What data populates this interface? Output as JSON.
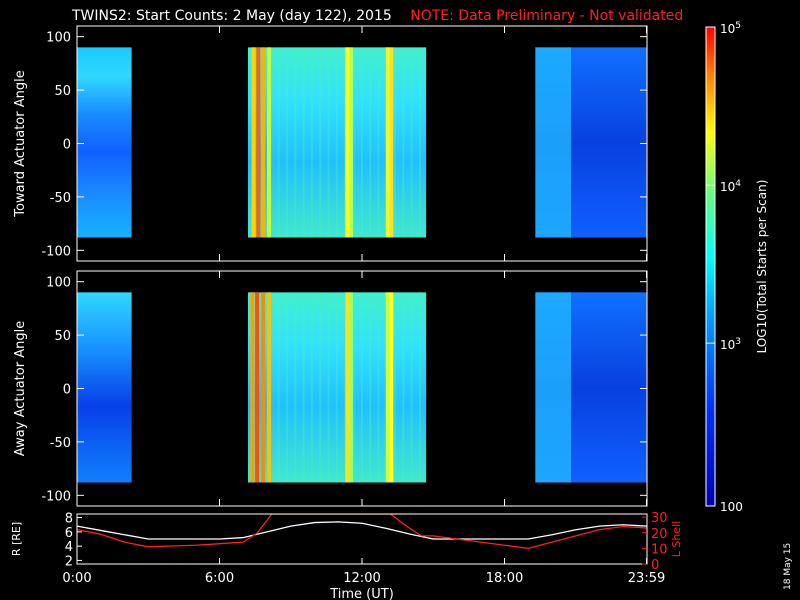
{
  "title": {
    "main": "TWINS2: Start Counts:  2 May (day 122), 2015",
    "note": "NOTE: Data Preliminary - Not validated"
  },
  "chart_data": [
    {
      "type": "heatmap",
      "ylabel": "Toward Actuator Angle",
      "ylim": [
        -110,
        110
      ],
      "yticks": [
        100,
        50,
        0,
        -50,
        -100
      ],
      "angle_range": [
        -88,
        90
      ],
      "xlim": [
        0,
        24
      ],
      "data_intervals": [
        [
          0,
          2.3
        ],
        [
          7.2,
          14.7
        ],
        [
          19.3,
          24
        ]
      ],
      "streaks": [
        {
          "t": 7.35,
          "color": "#ffd200"
        },
        {
          "t": 7.55,
          "color": "#ff6000"
        },
        {
          "t": 7.75,
          "color": "#ffb000"
        },
        {
          "t": 8.0,
          "color": "#c8ff30"
        },
        {
          "t": 11.3,
          "color": "#ffff20"
        },
        {
          "t": 11.45,
          "color": "#b8ff50"
        },
        {
          "t": 13.0,
          "color": "#e8ff30"
        },
        {
          "t": 13.15,
          "color": "#ffe020"
        }
      ]
    },
    {
      "type": "heatmap",
      "ylabel": "Away Actuator Angle",
      "ylim": [
        -110,
        110
      ],
      "yticks": [
        100,
        50,
        0,
        -50,
        -100
      ],
      "angle_range": [
        -88,
        90
      ],
      "xlim": [
        0,
        24
      ],
      "data_intervals": [
        [
          0,
          2.3
        ],
        [
          7.2,
          14.7
        ],
        [
          19.3,
          24
        ]
      ],
      "streaks": [
        {
          "t": 7.3,
          "color": "#ffa000"
        },
        {
          "t": 7.5,
          "color": "#ff5000"
        },
        {
          "t": 7.75,
          "color": "#ff8a00"
        },
        {
          "t": 8.0,
          "color": "#ffc000"
        },
        {
          "t": 11.3,
          "color": "#ffe020"
        },
        {
          "t": 11.45,
          "color": "#a0ff60"
        },
        {
          "t": 13.0,
          "color": "#d0ff40"
        },
        {
          "t": 13.15,
          "color": "#ffff20"
        }
      ]
    },
    {
      "type": "line",
      "ylabel_left": "R [RE]",
      "ylabel_right": "L Shell",
      "xlabel": "Time (UT)",
      "xlim": [
        0,
        24
      ],
      "x_ticks": [
        "0:00",
        "6:00",
        "12:00",
        "18:00",
        "23:59"
      ],
      "x_tick_values": [
        0,
        6,
        12,
        18,
        23.98
      ],
      "yticks_left": [
        8,
        6,
        4,
        2
      ],
      "yticks_right": [
        30,
        20,
        10,
        0
      ],
      "ylim_left": [
        1.5,
        8.5
      ],
      "ylim_right": [
        0,
        32
      ],
      "series": [
        {
          "axis": "left",
          "color": "#ffffff",
          "x": [
            0,
            1,
            2,
            3,
            4,
            5,
            6,
            7,
            8,
            9,
            10,
            11,
            12,
            13,
            14,
            15,
            16,
            17,
            18,
            19,
            20,
            21,
            22,
            23,
            24
          ],
          "y": [
            6.8,
            6.2,
            5.6,
            5.0,
            5.0,
            5.0,
            5.0,
            5.2,
            6.0,
            6.8,
            7.3,
            7.4,
            7.2,
            6.5,
            5.7,
            5.0,
            5.0,
            5.0,
            5.0,
            5.0,
            5.6,
            6.3,
            6.8,
            7.0,
            6.8
          ]
        },
        {
          "axis": "right",
          "color": "#ff2020",
          "x": [
            0,
            1,
            2,
            3,
            4,
            5,
            6,
            7,
            7.6,
            8.2,
            13.2,
            13.8,
            14.5,
            15,
            16,
            17,
            18,
            19,
            20,
            21,
            22,
            23,
            24
          ],
          "y": [
            22,
            19,
            14,
            11,
            11.5,
            12,
            13,
            14,
            20,
            32,
            32,
            25,
            18,
            18,
            16,
            14,
            12,
            10,
            14,
            18,
            22,
            24,
            23
          ]
        }
      ]
    }
  ],
  "colorbar": {
    "label": "LOG10(Total Starts per Scan)",
    "ticks": [
      "10^5",
      "10^4",
      "10^3",
      "100"
    ]
  },
  "footer": {
    "date": "18 May 15"
  }
}
